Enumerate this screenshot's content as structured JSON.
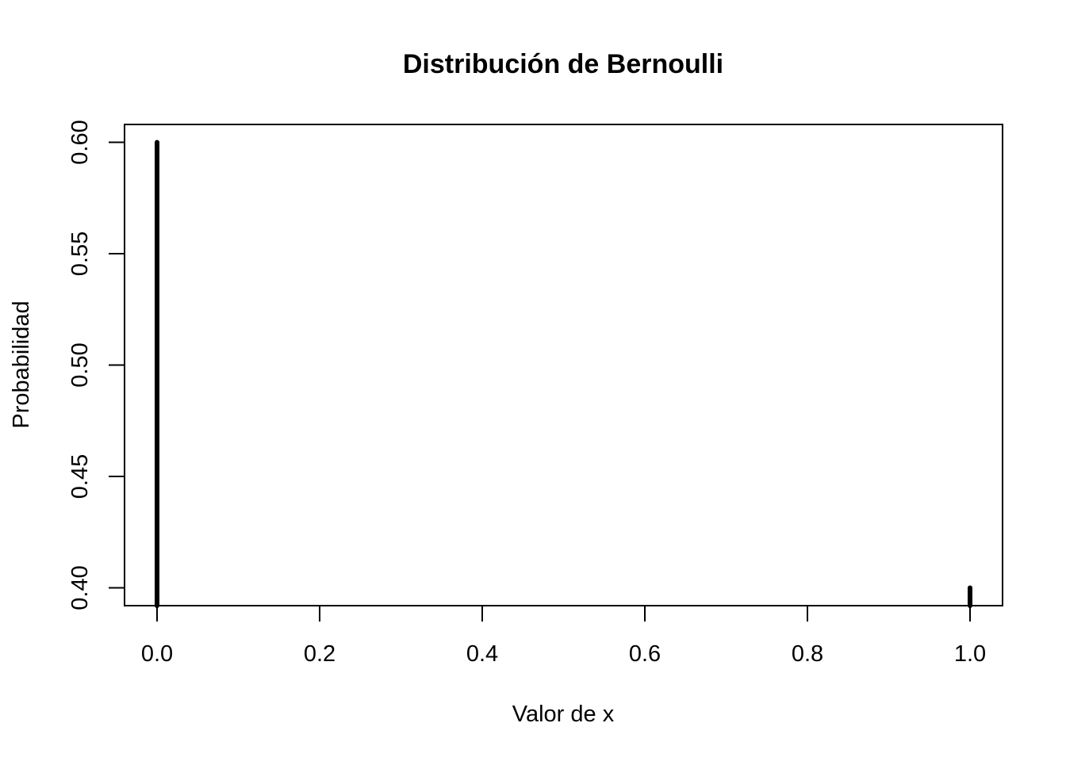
{
  "chart_data": {
    "type": "bar",
    "title": "Distribución de Bernoulli",
    "xlabel": "Valor de x",
    "ylabel": "Probabilidad",
    "x": [
      0,
      1
    ],
    "y": [
      0.6,
      0.4
    ],
    "xlim": [
      -0.04,
      1.04
    ],
    "ylim": [
      0.392,
      0.608
    ],
    "xticks": [
      0,
      0.2,
      0.4,
      0.6,
      0.8,
      1
    ],
    "xtick_labels": [
      "0.0",
      "0.2",
      "0.4",
      "0.6",
      "0.8",
      "1.0"
    ],
    "yticks": [
      0.4,
      0.45,
      0.5,
      0.55,
      0.6
    ],
    "ytick_labels": [
      "0.40",
      "0.45",
      "0.50",
      "0.55",
      "0.60"
    ],
    "grid": false,
    "legend": "none",
    "bar_color": "#000000"
  }
}
